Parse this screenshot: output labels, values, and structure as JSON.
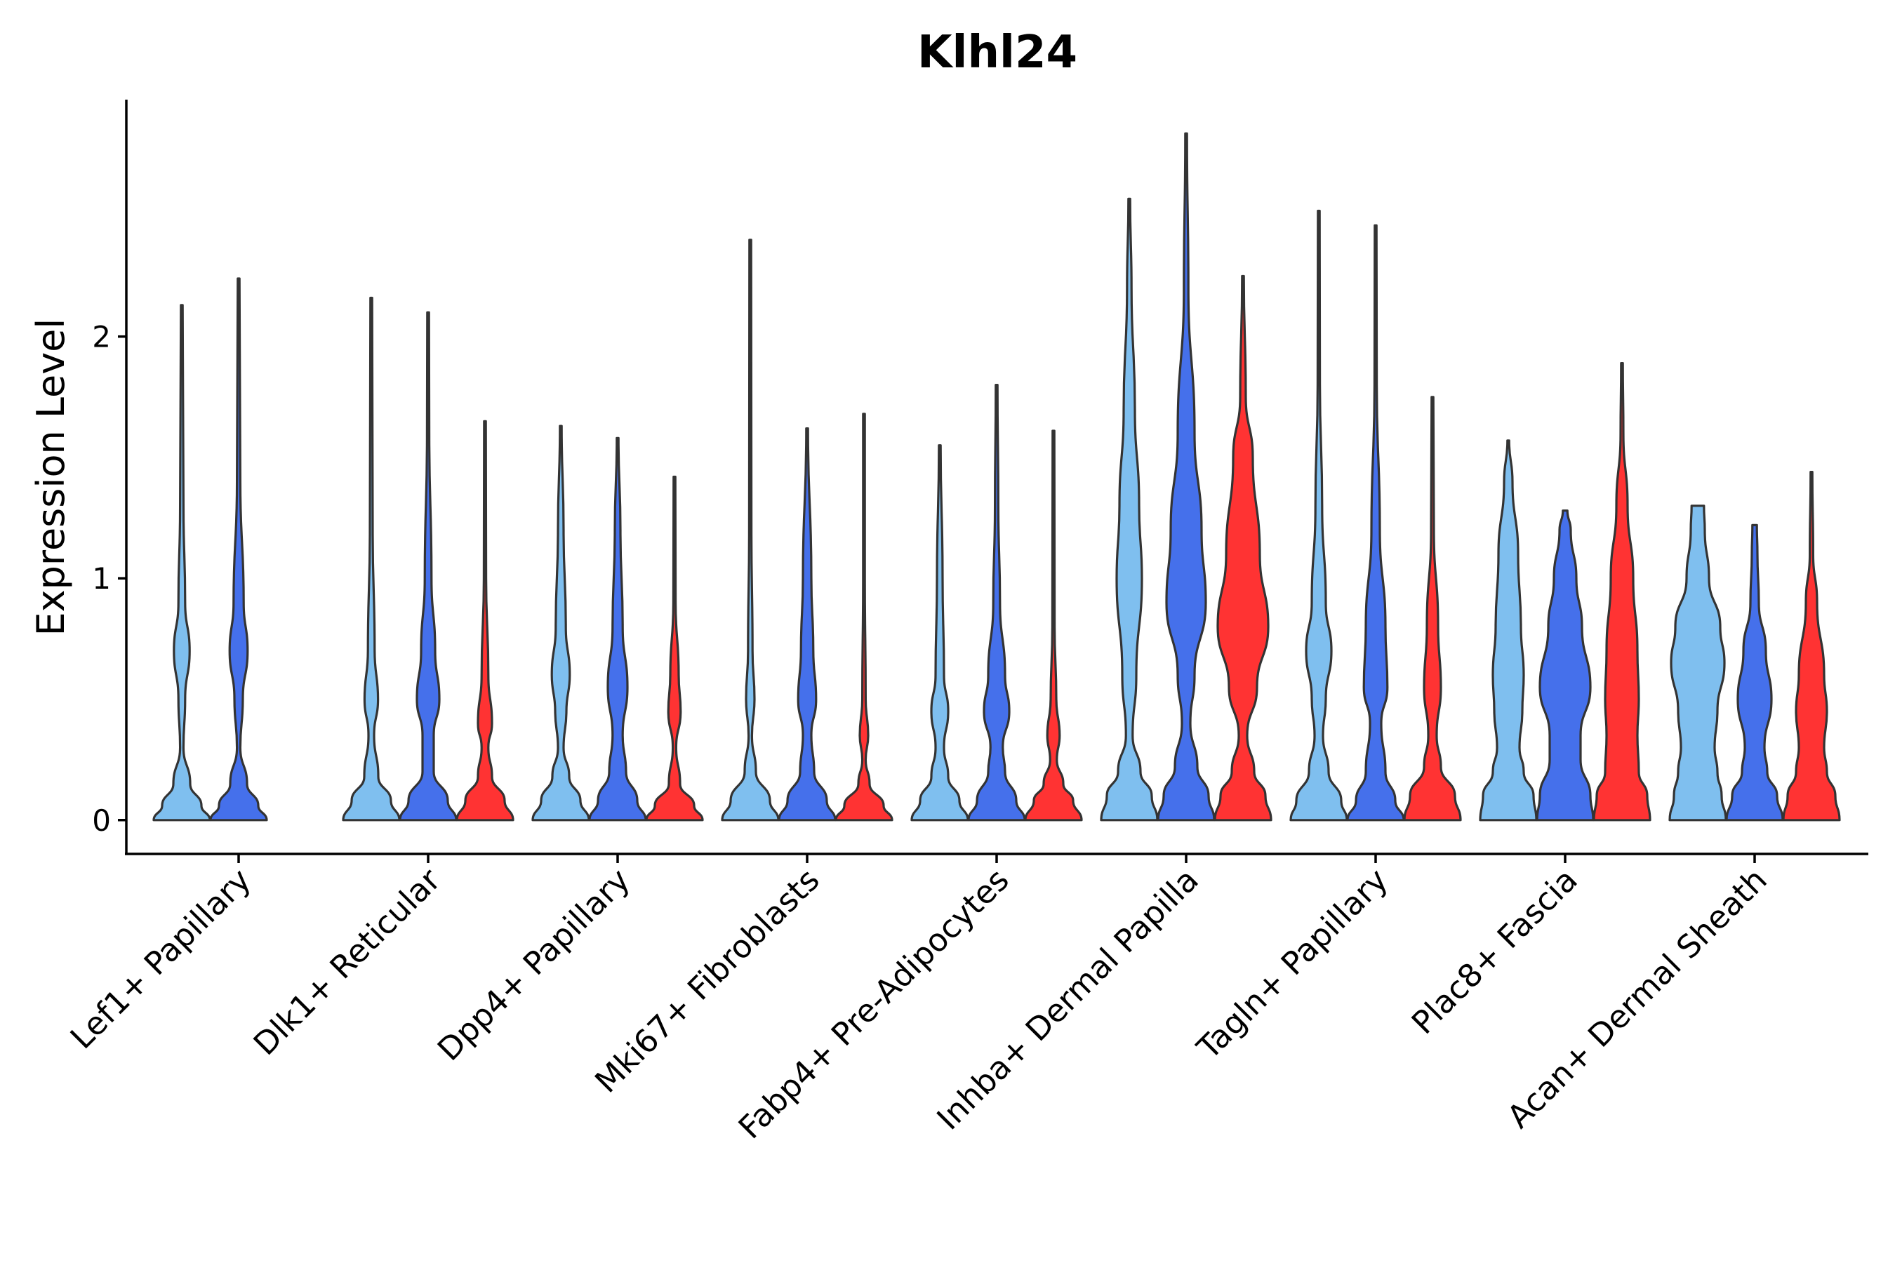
{
  "chart_data": {
    "type": "violin",
    "title": "Klhl24",
    "xlabel": "",
    "ylabel": "Expression Level",
    "ylim": [
      -0.14,
      2.98
    ],
    "yticks": [
      0,
      1,
      2
    ],
    "colors": [
      "#7FBFEF",
      "#4570EB",
      "#FF3333"
    ],
    "categories": [
      "Lef1+ Papillary",
      "Dlk1+ Reticular",
      "Dpp4+ Papillary",
      "Mki67+ Fibroblasts",
      "Fabp4+ Pre-Adipocytes",
      "Inhba+ Dermal Papilla",
      "Tagln+ Papillary",
      "Plac8+ Fascia",
      "Acan+ Dermal Sheath"
    ],
    "violins": [
      {
        "category": "Lef1+ Papillary",
        "group": 0,
        "max": 2.13,
        "profile": [
          [
            0,
            1.0
          ],
          [
            0.06,
            0.7
          ],
          [
            0.15,
            0.3
          ],
          [
            0.3,
            0.06
          ],
          [
            0.5,
            0.12
          ],
          [
            0.7,
            0.28
          ],
          [
            0.9,
            0.12
          ],
          [
            1.3,
            0.06
          ],
          [
            2.13,
            0.01
          ]
        ]
      },
      {
        "category": "Lef1+ Papillary",
        "group": 1,
        "max": 2.24,
        "profile": [
          [
            0,
            1.0
          ],
          [
            0.06,
            0.7
          ],
          [
            0.15,
            0.3
          ],
          [
            0.3,
            0.06
          ],
          [
            0.5,
            0.15
          ],
          [
            0.7,
            0.32
          ],
          [
            0.9,
            0.18
          ],
          [
            1.4,
            0.06
          ],
          [
            2.24,
            0.01
          ]
        ]
      },
      {
        "category": "Dlk1+ Reticular",
        "group": 0,
        "max": 2.16,
        "profile": [
          [
            0,
            1.0
          ],
          [
            0.08,
            0.7
          ],
          [
            0.18,
            0.25
          ],
          [
            0.35,
            0.1
          ],
          [
            0.5,
            0.24
          ],
          [
            0.7,
            0.12
          ],
          [
            1.2,
            0.05
          ],
          [
            2.16,
            0.01
          ]
        ]
      },
      {
        "category": "Dlk1+ Reticular",
        "group": 1,
        "max": 2.1,
        "profile": [
          [
            0,
            1.0
          ],
          [
            0.08,
            0.7
          ],
          [
            0.2,
            0.2
          ],
          [
            0.35,
            0.2
          ],
          [
            0.5,
            0.4
          ],
          [
            0.7,
            0.25
          ],
          [
            1.0,
            0.12
          ],
          [
            1.6,
            0.04
          ],
          [
            2.1,
            0.01
          ]
        ]
      },
      {
        "category": "Dlk1+ Reticular",
        "group": 2,
        "max": 1.65,
        "profile": [
          [
            0,
            1.0
          ],
          [
            0.08,
            0.7
          ],
          [
            0.18,
            0.25
          ],
          [
            0.3,
            0.12
          ],
          [
            0.4,
            0.25
          ],
          [
            0.6,
            0.12
          ],
          [
            1.0,
            0.04
          ],
          [
            1.65,
            0.01
          ]
        ]
      },
      {
        "category": "Dpp4+ Papillary",
        "group": 0,
        "max": 1.63,
        "profile": [
          [
            0,
            1.0
          ],
          [
            0.08,
            0.7
          ],
          [
            0.18,
            0.3
          ],
          [
            0.3,
            0.1
          ],
          [
            0.45,
            0.2
          ],
          [
            0.6,
            0.32
          ],
          [
            0.8,
            0.18
          ],
          [
            1.2,
            0.1
          ],
          [
            1.63,
            0.01
          ]
        ]
      },
      {
        "category": "Dpp4+ Papillary",
        "group": 1,
        "max": 1.58,
        "profile": [
          [
            0,
            1.0
          ],
          [
            0.08,
            0.7
          ],
          [
            0.2,
            0.3
          ],
          [
            0.35,
            0.18
          ],
          [
            0.55,
            0.35
          ],
          [
            0.8,
            0.18
          ],
          [
            1.2,
            0.1
          ],
          [
            1.58,
            0.01
          ]
        ]
      },
      {
        "category": "Dpp4+ Papillary",
        "group": 2,
        "max": 1.42,
        "profile": [
          [
            0,
            1.0
          ],
          [
            0.06,
            0.7
          ],
          [
            0.15,
            0.2
          ],
          [
            0.3,
            0.06
          ],
          [
            0.45,
            0.22
          ],
          [
            0.6,
            0.15
          ],
          [
            0.9,
            0.04
          ],
          [
            1.42,
            0.01
          ]
        ]
      },
      {
        "category": "Mki67+ Fibroblasts",
        "group": 0,
        "max": 2.4,
        "profile": [
          [
            0,
            1.0
          ],
          [
            0.08,
            0.7
          ],
          [
            0.2,
            0.2
          ],
          [
            0.35,
            0.06
          ],
          [
            0.5,
            0.15
          ],
          [
            0.7,
            0.08
          ],
          [
            1.2,
            0.04
          ],
          [
            2.4,
            0.01
          ]
        ]
      },
      {
        "category": "Mki67+ Fibroblasts",
        "group": 1,
        "max": 1.62,
        "profile": [
          [
            0,
            1.0
          ],
          [
            0.08,
            0.7
          ],
          [
            0.2,
            0.25
          ],
          [
            0.35,
            0.15
          ],
          [
            0.5,
            0.32
          ],
          [
            0.7,
            0.22
          ],
          [
            1.0,
            0.15
          ],
          [
            1.62,
            0.01
          ]
        ]
      },
      {
        "category": "Mki67+ Fibroblasts",
        "group": 2,
        "max": 1.68,
        "profile": [
          [
            0,
            1.0
          ],
          [
            0.06,
            0.7
          ],
          [
            0.15,
            0.2
          ],
          [
            0.25,
            0.06
          ],
          [
            0.35,
            0.15
          ],
          [
            0.5,
            0.06
          ],
          [
            1.0,
            0.03
          ],
          [
            1.68,
            0.01
          ]
        ]
      },
      {
        "category": "Fabp4+ Pre-Adipocytes",
        "group": 0,
        "max": 1.55,
        "profile": [
          [
            0,
            1.0
          ],
          [
            0.08,
            0.7
          ],
          [
            0.18,
            0.3
          ],
          [
            0.3,
            0.15
          ],
          [
            0.45,
            0.3
          ],
          [
            0.6,
            0.15
          ],
          [
            1.0,
            0.1
          ],
          [
            1.55,
            0.01
          ]
        ]
      },
      {
        "category": "Fabp4+ Pre-Adipocytes",
        "group": 1,
        "max": 1.8,
        "profile": [
          [
            0,
            1.0
          ],
          [
            0.08,
            0.7
          ],
          [
            0.2,
            0.3
          ],
          [
            0.3,
            0.22
          ],
          [
            0.45,
            0.45
          ],
          [
            0.6,
            0.3
          ],
          [
            0.9,
            0.12
          ],
          [
            1.3,
            0.06
          ],
          [
            1.8,
            0.01
          ]
        ]
      },
      {
        "category": "Fabp4+ Pre-Adipocytes",
        "group": 2,
        "max": 1.61,
        "profile": [
          [
            0,
            1.0
          ],
          [
            0.08,
            0.7
          ],
          [
            0.15,
            0.35
          ],
          [
            0.25,
            0.12
          ],
          [
            0.35,
            0.22
          ],
          [
            0.5,
            0.1
          ],
          [
            0.8,
            0.04
          ],
          [
            1.61,
            0.01
          ]
        ]
      },
      {
        "category": "Inhba+ Dermal Papilla",
        "group": 0,
        "max": 2.57,
        "profile": [
          [
            0,
            1.0
          ],
          [
            0.1,
            0.8
          ],
          [
            0.2,
            0.4
          ],
          [
            0.35,
            0.12
          ],
          [
            0.6,
            0.25
          ],
          [
            1.0,
            0.45
          ],
          [
            1.3,
            0.35
          ],
          [
            1.7,
            0.2
          ],
          [
            2.2,
            0.08
          ],
          [
            2.57,
            0.01
          ]
        ]
      },
      {
        "category": "Inhba+ Dermal Papilla",
        "group": 1,
        "max": 2.84,
        "profile": [
          [
            0,
            1.0
          ],
          [
            0.1,
            0.8
          ],
          [
            0.22,
            0.4
          ],
          [
            0.4,
            0.15
          ],
          [
            0.6,
            0.3
          ],
          [
            0.9,
            0.7
          ],
          [
            1.2,
            0.55
          ],
          [
            1.6,
            0.3
          ],
          [
            2.2,
            0.08
          ],
          [
            2.84,
            0.01
          ]
        ]
      },
      {
        "category": "Inhba+ Dermal Papilla",
        "group": 2,
        "max": 2.25,
        "profile": [
          [
            0,
            1.0
          ],
          [
            0.1,
            0.8
          ],
          [
            0.2,
            0.4
          ],
          [
            0.35,
            0.15
          ],
          [
            0.55,
            0.5
          ],
          [
            0.8,
            0.9
          ],
          [
            1.1,
            0.6
          ],
          [
            1.5,
            0.35
          ],
          [
            1.75,
            0.1
          ],
          [
            2.25,
            0.01
          ]
        ]
      },
      {
        "category": "Tagln+ Papillary",
        "group": 0,
        "max": 2.52,
        "profile": [
          [
            0,
            1.0
          ],
          [
            0.08,
            0.8
          ],
          [
            0.2,
            0.35
          ],
          [
            0.35,
            0.15
          ],
          [
            0.5,
            0.25
          ],
          [
            0.7,
            0.45
          ],
          [
            0.9,
            0.25
          ],
          [
            1.3,
            0.12
          ],
          [
            1.8,
            0.04
          ],
          [
            2.52,
            0.01
          ]
        ]
      },
      {
        "category": "Tagln+ Papillary",
        "group": 1,
        "max": 2.46,
        "profile": [
          [
            0,
            1.0
          ],
          [
            0.08,
            0.7
          ],
          [
            0.2,
            0.35
          ],
          [
            0.4,
            0.2
          ],
          [
            0.55,
            0.42
          ],
          [
            0.8,
            0.35
          ],
          [
            1.2,
            0.15
          ],
          [
            1.8,
            0.04
          ],
          [
            2.46,
            0.01
          ]
        ]
      },
      {
        "category": "Tagln+ Papillary",
        "group": 2,
        "max": 1.75,
        "profile": [
          [
            0,
            1.0
          ],
          [
            0.1,
            0.8
          ],
          [
            0.22,
            0.3
          ],
          [
            0.35,
            0.15
          ],
          [
            0.55,
            0.3
          ],
          [
            0.8,
            0.2
          ],
          [
            1.2,
            0.05
          ],
          [
            1.75,
            0.01
          ]
        ]
      },
      {
        "category": "Plac8+ Fascia",
        "group": 0,
        "max": 1.57,
        "profile": [
          [
            0,
            1.0
          ],
          [
            0.1,
            0.9
          ],
          [
            0.2,
            0.55
          ],
          [
            0.3,
            0.4
          ],
          [
            0.45,
            0.5
          ],
          [
            0.6,
            0.55
          ],
          [
            0.8,
            0.45
          ],
          [
            1.1,
            0.35
          ],
          [
            1.4,
            0.15
          ],
          [
            1.57,
            0.01
          ]
        ]
      },
      {
        "category": "Plac8+ Fascia",
        "group": 1,
        "max": 1.28,
        "profile": [
          [
            0,
            1.0
          ],
          [
            0.1,
            0.9
          ],
          [
            0.25,
            0.55
          ],
          [
            0.35,
            0.55
          ],
          [
            0.55,
            0.9
          ],
          [
            0.8,
            0.6
          ],
          [
            1.0,
            0.4
          ],
          [
            1.2,
            0.2
          ],
          [
            1.28,
            0.08
          ]
        ]
      },
      {
        "category": "Plac8+ Fascia",
        "group": 2,
        "max": 1.89,
        "profile": [
          [
            0,
            1.0
          ],
          [
            0.1,
            0.9
          ],
          [
            0.2,
            0.6
          ],
          [
            0.35,
            0.55
          ],
          [
            0.5,
            0.6
          ],
          [
            0.7,
            0.55
          ],
          [
            1.0,
            0.4
          ],
          [
            1.3,
            0.2
          ],
          [
            1.6,
            0.05
          ],
          [
            1.89,
            0.01
          ]
        ]
      },
      {
        "category": "Acan+ Dermal Sheath",
        "group": 0,
        "max": 1.3,
        "profile": [
          [
            0,
            1.0
          ],
          [
            0.1,
            0.85
          ],
          [
            0.2,
            0.7
          ],
          [
            0.3,
            0.6
          ],
          [
            0.45,
            0.7
          ],
          [
            0.65,
            0.95
          ],
          [
            0.8,
            0.8
          ],
          [
            1.0,
            0.4
          ],
          [
            1.2,
            0.25
          ],
          [
            1.3,
            0.22
          ]
        ]
      },
      {
        "category": "Acan+ Dermal Sheath",
        "group": 1,
        "max": 1.22,
        "profile": [
          [
            0,
            1.0
          ],
          [
            0.1,
            0.8
          ],
          [
            0.2,
            0.45
          ],
          [
            0.3,
            0.35
          ],
          [
            0.5,
            0.6
          ],
          [
            0.7,
            0.4
          ],
          [
            0.9,
            0.15
          ],
          [
            1.1,
            0.1
          ],
          [
            1.22,
            0.08
          ]
        ]
      },
      {
        "category": "Acan+ Dermal Sheath",
        "group": 2,
        "max": 1.44,
        "profile": [
          [
            0,
            1.0
          ],
          [
            0.1,
            0.85
          ],
          [
            0.2,
            0.55
          ],
          [
            0.3,
            0.45
          ],
          [
            0.45,
            0.55
          ],
          [
            0.6,
            0.45
          ],
          [
            0.9,
            0.2
          ],
          [
            1.1,
            0.06
          ],
          [
            1.44,
            0.01
          ]
        ]
      }
    ]
  }
}
